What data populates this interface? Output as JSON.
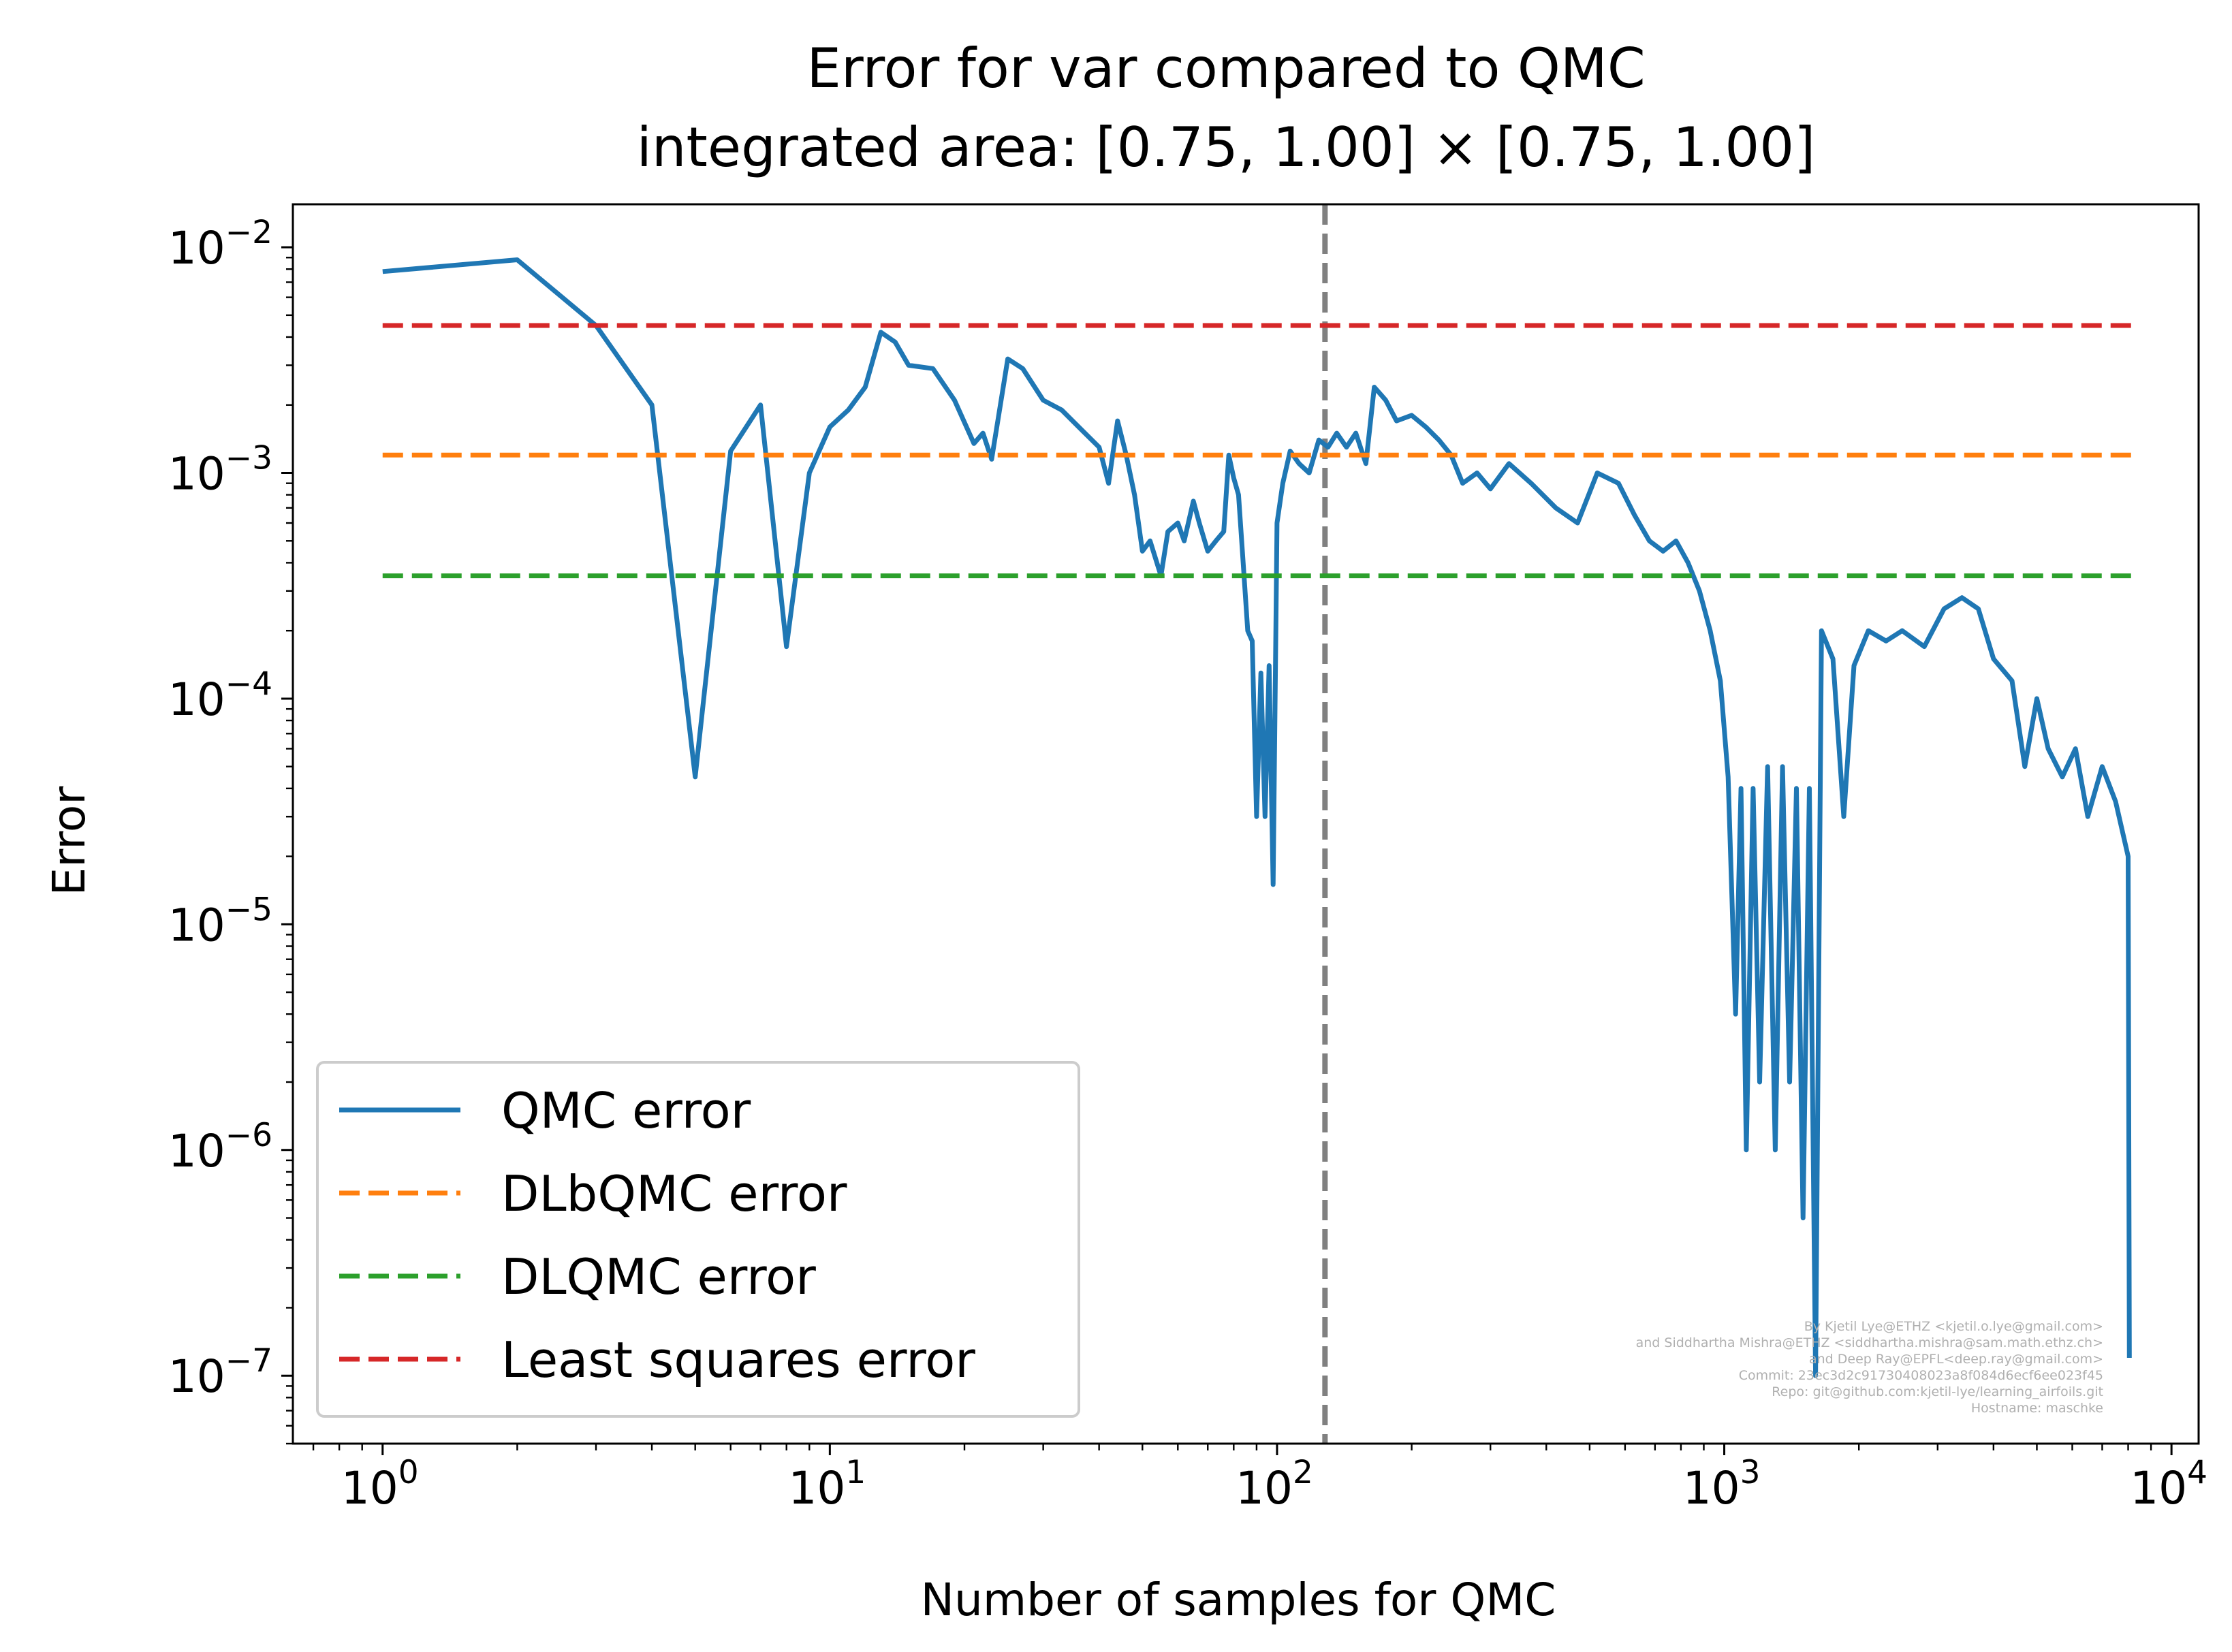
{
  "chart_data": {
    "type": "line",
    "title": [
      "Error for var compared to QMC",
      "integrated area: [0.75, 1.00] × [0.75, 1.00]"
    ],
    "xlabel": "Number of samples for QMC",
    "ylabel": "Error",
    "xscale": "log",
    "yscale": "log",
    "xlim": [
      0.63,
      11500
    ],
    "ylim": [
      5e-08,
      0.0155
    ],
    "x_ticks": [
      {
        "value": 1,
        "base": "10",
        "exp": "0"
      },
      {
        "value": 10,
        "base": "10",
        "exp": "1"
      },
      {
        "value": 100,
        "base": "10",
        "exp": "2"
      },
      {
        "value": 1000,
        "base": "10",
        "exp": "3"
      },
      {
        "value": 10000,
        "base": "10",
        "exp": "4"
      }
    ],
    "y_ticks": [
      {
        "value": 1e-07,
        "base": "10",
        "exp": "−7"
      },
      {
        "value": 1e-06,
        "base": "10",
        "exp": "−6"
      },
      {
        "value": 1e-05,
        "base": "10",
        "exp": "−5"
      },
      {
        "value": 0.0001,
        "base": "10",
        "exp": "−4"
      },
      {
        "value": 0.001,
        "base": "10",
        "exp": "−3"
      },
      {
        "value": 0.01,
        "base": "10",
        "exp": "−2"
      }
    ],
    "grid": false,
    "legend_position": "lower-left",
    "vertical_line": {
      "x": 128,
      "color": "#808080",
      "style": "dashed"
    },
    "series": [
      {
        "name": "QMC error",
        "color": "#1f77b4",
        "style": "solid",
        "points": [
          [
            1,
            0.0078
          ],
          [
            2,
            0.0088
          ],
          [
            3,
            0.0045
          ],
          [
            4,
            0.002
          ],
          [
            5,
            4.5e-05
          ],
          [
            6,
            0.00125
          ],
          [
            7,
            0.002
          ],
          [
            8,
            0.00017
          ],
          [
            9,
            0.001
          ],
          [
            10,
            0.0016
          ],
          [
            11,
            0.0019
          ],
          [
            12,
            0.0024
          ],
          [
            13,
            0.0042
          ],
          [
            14,
            0.0038
          ],
          [
            15,
            0.003
          ],
          [
            17,
            0.0029
          ],
          [
            19,
            0.0021
          ],
          [
            21,
            0.00135
          ],
          [
            22,
            0.0015
          ],
          [
            23,
            0.00115
          ],
          [
            25,
            0.0032
          ],
          [
            27,
            0.0029
          ],
          [
            30,
            0.0021
          ],
          [
            33,
            0.0019
          ],
          [
            36,
            0.0016
          ],
          [
            40,
            0.0013
          ],
          [
            42,
            0.0009
          ],
          [
            44,
            0.0017
          ],
          [
            46,
            0.0012
          ],
          [
            48,
            0.0008
          ],
          [
            50,
            0.00045
          ],
          [
            52,
            0.0005
          ],
          [
            55,
            0.00035
          ],
          [
            57,
            0.00055
          ],
          [
            60,
            0.0006
          ],
          [
            62,
            0.0005
          ],
          [
            65,
            0.00075
          ],
          [
            67,
            0.0006
          ],
          [
            70,
            0.00045
          ],
          [
            73,
            0.0005
          ],
          [
            76,
            0.00055
          ],
          [
            78,
            0.0012
          ],
          [
            80,
            0.00095
          ],
          [
            82,
            0.0008
          ],
          [
            84,
            0.0004
          ],
          [
            86,
            0.0002
          ],
          [
            88,
            0.00018
          ],
          [
            90,
            3e-05
          ],
          [
            92,
            0.00013
          ],
          [
            94,
            3e-05
          ],
          [
            96,
            0.00014
          ],
          [
            98,
            1.5e-05
          ],
          [
            100,
            0.0006
          ],
          [
            103,
            0.0009
          ],
          [
            107,
            0.00125
          ],
          [
            112,
            0.0011
          ],
          [
            118,
            0.001
          ],
          [
            124,
            0.0014
          ],
          [
            130,
            0.0013
          ],
          [
            136,
            0.0015
          ],
          [
            143,
            0.0013
          ],
          [
            150,
            0.0015
          ],
          [
            158,
            0.0011
          ],
          [
            165,
            0.0024
          ],
          [
            175,
            0.0021
          ],
          [
            185,
            0.0017
          ],
          [
            200,
            0.0018
          ],
          [
            215,
            0.0016
          ],
          [
            230,
            0.0014
          ],
          [
            245,
            0.0012
          ],
          [
            260,
            0.0009
          ],
          [
            280,
            0.001
          ],
          [
            300,
            0.00085
          ],
          [
            330,
            0.0011
          ],
          [
            370,
            0.0009
          ],
          [
            420,
            0.0007
          ],
          [
            470,
            0.0006
          ],
          [
            520,
            0.001
          ],
          [
            580,
            0.0009
          ],
          [
            630,
            0.00065
          ],
          [
            680,
            0.0005
          ],
          [
            730,
            0.00045
          ],
          [
            780,
            0.0005
          ],
          [
            830,
            0.0004
          ],
          [
            880,
            0.0003
          ],
          [
            930,
            0.0002
          ],
          [
            980,
            0.00012
          ],
          [
            1020,
            4.5e-05
          ],
          [
            1060,
            4e-06
          ],
          [
            1090,
            4e-05
          ],
          [
            1120,
            1e-06
          ],
          [
            1160,
            4e-05
          ],
          [
            1200,
            2e-06
          ],
          [
            1250,
            5e-05
          ],
          [
            1300,
            1e-06
          ],
          [
            1350,
            5e-05
          ],
          [
            1400,
            2e-06
          ],
          [
            1450,
            4e-05
          ],
          [
            1500,
            5e-07
          ],
          [
            1550,
            4e-05
          ],
          [
            1600,
            1e-07
          ],
          [
            1650,
            0.0002
          ],
          [
            1750,
            0.00015
          ],
          [
            1850,
            3e-05
          ],
          [
            1950,
            0.00014
          ],
          [
            2100,
            0.0002
          ],
          [
            2300,
            0.00018
          ],
          [
            2500,
            0.0002
          ],
          [
            2800,
            0.00017
          ],
          [
            3100,
            0.00025
          ],
          [
            3400,
            0.00028
          ],
          [
            3700,
            0.00025
          ],
          [
            4000,
            0.00015
          ],
          [
            4400,
            0.00012
          ],
          [
            4700,
            5e-05
          ],
          [
            5000,
            0.0001
          ],
          [
            5300,
            6e-05
          ],
          [
            5700,
            4.5e-05
          ],
          [
            6100,
            6e-05
          ],
          [
            6500,
            3e-05
          ],
          [
            7000,
            5e-05
          ],
          [
            7500,
            3.5e-05
          ],
          [
            8000,
            2e-05
          ],
          [
            8050,
            1.2e-07
          ]
        ]
      },
      {
        "name": "DLbQMC error",
        "color": "#ff7f0e",
        "style": "dashed",
        "x_range": [
          1,
          8192
        ],
        "y": 0.0012
      },
      {
        "name": "DLQMC error",
        "color": "#2ca02c",
        "style": "dashed",
        "x_range": [
          1,
          8192
        ],
        "y": 0.00035
      },
      {
        "name": "Least squares error",
        "color": "#d62728",
        "style": "dashed",
        "x_range": [
          1,
          8192
        ],
        "y": 0.0045
      }
    ],
    "credits": [
      "By Kjetil Lye@ETHZ <kjetil.o.lye@gmail.com>",
      "and Siddhartha Mishra@ETHZ <siddhartha.mishra@sam.math.ethz.ch>",
      "and Deep Ray@EPFL<deep.ray@gmail.com>",
      "Commit: 23ec3d2c91730408023a8f084d6ecf6ee023f45",
      "Repo: git@github.com:kjetil-lye/learning_airfoils.git",
      "Hostname: maschke"
    ]
  }
}
